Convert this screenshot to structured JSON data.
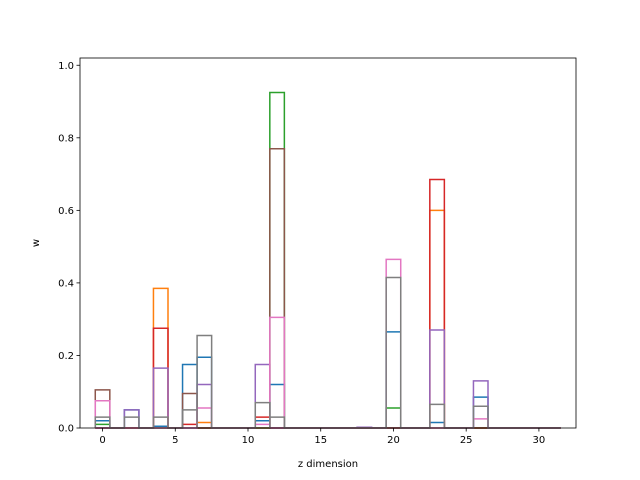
{
  "chart_data": {
    "type": "bar",
    "xlabel": "z dimension",
    "ylabel": "w",
    "xlim": [
      -1.55,
      32.55
    ],
    "ylim": [
      0,
      1.02
    ],
    "xticks": [
      0,
      5,
      10,
      15,
      20,
      25,
      30
    ],
    "yticks": [
      0.0,
      0.2,
      0.4,
      0.6,
      0.8,
      1.0
    ],
    "xtick_labels": [
      "0",
      "5",
      "10",
      "15",
      "20",
      "25",
      "30"
    ],
    "ytick_labels": [
      "0.0",
      "0.2",
      "0.4",
      "0.6",
      "0.8",
      "1.0"
    ],
    "grid": false,
    "legend": false,
    "bar_width": 1.0,
    "x": [
      0,
      1,
      2,
      3,
      4,
      5,
      6,
      7,
      8,
      9,
      10,
      11,
      12,
      13,
      14,
      15,
      16,
      17,
      18,
      19,
      20,
      21,
      22,
      23,
      24,
      25,
      26,
      27,
      28,
      29,
      30,
      31
    ],
    "series": [
      {
        "color": "#1f77b4",
        "values": [
          0.02,
          0,
          0.05,
          0,
          0.005,
          0,
          0.175,
          0.195,
          0,
          0,
          0,
          0.02,
          0.12,
          0,
          0,
          0,
          0,
          0,
          0,
          0,
          0.265,
          0,
          0,
          0.015,
          0,
          0,
          0.085,
          0,
          0,
          0,
          0,
          0
        ]
      },
      {
        "color": "#ff7f0e",
        "values": [
          0,
          0,
          0,
          0,
          0.385,
          0,
          0,
          0.015,
          0,
          0,
          0,
          0,
          0,
          0,
          0,
          0,
          0,
          0,
          0,
          0,
          0,
          0,
          0,
          0.6,
          0,
          0,
          0,
          0,
          0,
          0,
          0,
          0
        ]
      },
      {
        "color": "#2ca02c",
        "values": [
          0.01,
          0,
          0,
          0,
          0,
          0,
          0,
          0,
          0,
          0,
          0,
          0,
          0.925,
          0,
          0,
          0,
          0,
          0,
          0,
          0,
          0.055,
          0,
          0,
          0,
          0,
          0,
          0,
          0,
          0,
          0,
          0,
          0
        ]
      },
      {
        "color": "#d62728",
        "values": [
          0,
          0,
          0,
          0,
          0.275,
          0,
          0.01,
          0,
          0,
          0,
          0,
          0.03,
          0,
          0,
          0,
          0,
          0,
          0,
          0,
          0,
          0,
          0,
          0,
          0.685,
          0,
          0,
          0,
          0,
          0,
          0,
          0,
          0
        ]
      },
      {
        "color": "#9467bd",
        "values": [
          0,
          0,
          0.05,
          0,
          0.165,
          0,
          0,
          0.12,
          0,
          0,
          0,
          0.175,
          0,
          0,
          0,
          0,
          0,
          0,
          0.002,
          0,
          0,
          0,
          0,
          0.27,
          0,
          0,
          0.13,
          0,
          0,
          0,
          0,
          0
        ]
      },
      {
        "color": "#8c564b",
        "values": [
          0.105,
          0,
          0,
          0,
          0,
          0,
          0.095,
          0,
          0,
          0,
          0,
          0,
          0.77,
          0,
          0,
          0,
          0,
          0,
          0,
          0,
          0,
          0,
          0,
          0,
          0,
          0,
          0,
          0,
          0,
          0,
          0,
          0
        ]
      },
      {
        "color": "#e377c2",
        "values": [
          0.075,
          0,
          0,
          0,
          0,
          0,
          0,
          0.055,
          0,
          0,
          0,
          0.01,
          0.305,
          0,
          0,
          0,
          0,
          0,
          0,
          0,
          0.465,
          0,
          0,
          0,
          0,
          0,
          0.025,
          0,
          0,
          0,
          0,
          0
        ]
      },
      {
        "color": "#7f7f7f",
        "values": [
          0.03,
          0,
          0.03,
          0,
          0.03,
          0,
          0.05,
          0.255,
          0,
          0,
          0,
          0.07,
          0.03,
          0,
          0,
          0,
          0,
          0,
          0,
          0,
          0.415,
          0,
          0,
          0.065,
          0,
          0,
          0.06,
          0,
          0,
          0,
          0,
          0
        ]
      }
    ]
  }
}
